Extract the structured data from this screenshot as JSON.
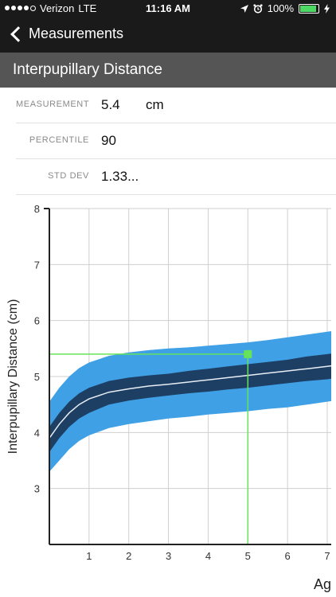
{
  "status_bar": {
    "carrier": "Verizon",
    "network": "LTE",
    "time": "11:16 AM",
    "battery": "100%",
    "battery_level": 1.0,
    "battery_color": "#4cd964"
  },
  "nav": {
    "back_label": "Measurements"
  },
  "section": {
    "title": "Interpupillary Distance"
  },
  "rows": [
    {
      "label": "MEASUREMENT",
      "value": "5.4",
      "unit": "cm"
    },
    {
      "label": "PERCENTILE",
      "value": "90"
    },
    {
      "label": "STD DEV",
      "value": "1.33..."
    }
  ],
  "chart_data": {
    "type": "line",
    "ylabel": "Interpupillary Distance (cm)",
    "xlabel": "Ag",
    "xlim": [
      0,
      7.1
    ],
    "ylim": [
      2,
      8
    ],
    "x_ticks": [
      "1",
      "2",
      "3",
      "4",
      "5",
      "6",
      "7"
    ],
    "y_ticks": [
      "3",
      "4",
      "5",
      "6",
      "7",
      "8"
    ],
    "grid": true,
    "colors": {
      "outer_band": "#3fa0e6",
      "inner_band": "#1d3f63",
      "median": "#e8eef5",
      "marker": "#66e35a"
    },
    "x": [
      0,
      0.25,
      0.5,
      0.75,
      1,
      1.5,
      2,
      2.5,
      3,
      3.5,
      4,
      4.5,
      5,
      5.5,
      6,
      6.5,
      7,
      7.1
    ],
    "series": [
      {
        "values": [
          3.3,
          3.5,
          3.7,
          3.85,
          3.95,
          4.08,
          4.15,
          4.2,
          4.25,
          4.28,
          4.32,
          4.35,
          4.38,
          4.42,
          4.45,
          4.5,
          4.55,
          4.56
        ]
      },
      {
        "values": [
          3.65,
          3.9,
          4.1,
          4.25,
          4.35,
          4.5,
          4.57,
          4.62,
          4.66,
          4.7,
          4.73,
          4.77,
          4.8,
          4.84,
          4.88,
          4.92,
          4.95,
          4.96
        ]
      },
      {
        "values": [
          3.9,
          4.15,
          4.35,
          4.5,
          4.6,
          4.72,
          4.78,
          4.83,
          4.86,
          4.9,
          4.94,
          4.98,
          5.02,
          5.06,
          5.1,
          5.14,
          5.18,
          5.19
        ]
      },
      {
        "values": [
          4.1,
          4.35,
          4.55,
          4.7,
          4.8,
          4.92,
          4.98,
          5.02,
          5.05,
          5.1,
          5.14,
          5.18,
          5.22,
          5.26,
          5.3,
          5.36,
          5.4,
          5.41
        ]
      },
      {
        "values": [
          4.55,
          4.8,
          5.0,
          5.15,
          5.25,
          5.37,
          5.43,
          5.47,
          5.5,
          5.52,
          5.55,
          5.58,
          5.61,
          5.65,
          5.7,
          5.75,
          5.8,
          5.81
        ]
      }
    ],
    "measurement_point": {
      "x": 5,
      "y": 5.4
    }
  }
}
